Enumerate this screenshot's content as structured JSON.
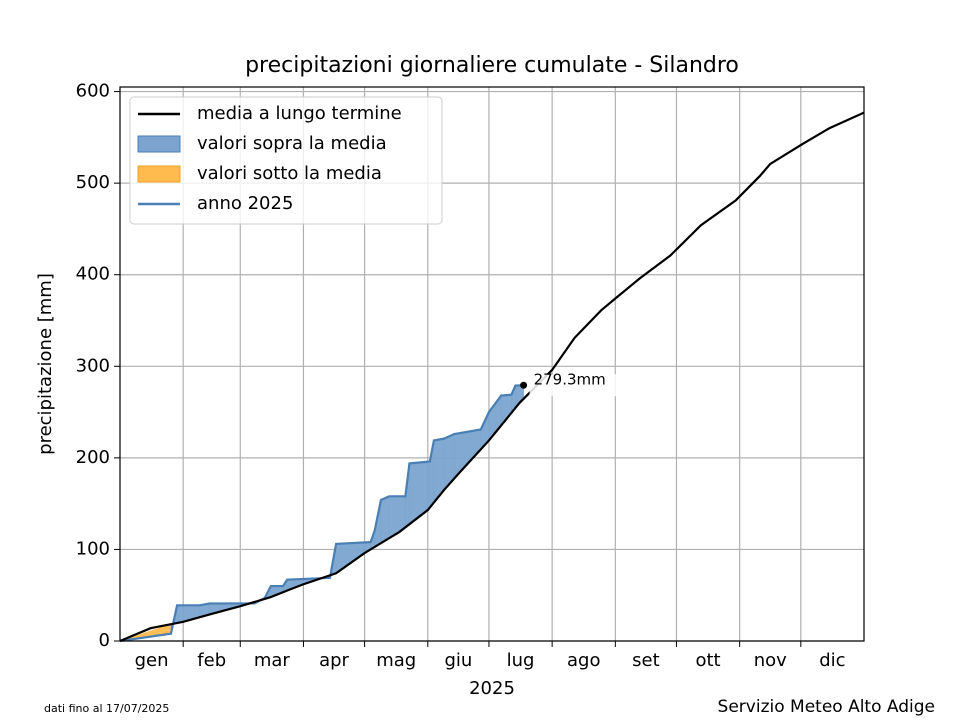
{
  "chart_data": {
    "type": "line",
    "title": "precipitazioni giornaliere cumulate - Silandro",
    "ylabel": "precipitazione [mm]",
    "xlabel": "2025",
    "footer_left": "dati fino al 17/07/2025",
    "footer_right": "Servizio Meteo Alto Adige",
    "xlim": [
      0,
      365
    ],
    "xticks": [
      31,
      59,
      90,
      120,
      151,
      181,
      212,
      243,
      273,
      304,
      334
    ],
    "month_labels": [
      "gen",
      "feb",
      "mar",
      "apr",
      "mag",
      "giu",
      "lug",
      "ago",
      "set",
      "ott",
      "nov",
      "dic"
    ],
    "ylim": [
      0,
      605
    ],
    "yticks": [
      0,
      100,
      200,
      300,
      400,
      500,
      600
    ],
    "grid": true,
    "legend": "upper left",
    "series": [
      {
        "name": "media a lungo termine",
        "color": "#000000",
        "x": [
          0,
          15,
          31,
          44,
          59,
          74,
          83,
          90,
          106,
          120,
          137,
          151,
          159,
          167,
          181,
          196,
          212,
          223,
          236,
          243,
          255,
          270,
          285,
          302,
          314,
          319,
          335,
          348,
          365
        ],
        "values": [
          0,
          14,
          21,
          29,
          38,
          48,
          56,
          62,
          74,
          96,
          119,
          143,
          165,
          185,
          219,
          260,
          296,
          331,
          361,
          374,
          396,
          421,
          454,
          481,
          508,
          521,
          543,
          560,
          577
        ]
      },
      {
        "name": "anno 2025",
        "color": "#4a7fb5",
        "x": [
          0,
          25,
          28,
          39,
          44,
          66,
          71,
          74,
          80,
          82,
          103,
          106,
          123,
          125,
          128,
          132,
          140,
          142,
          152,
          154,
          159,
          164,
          177,
          181,
          187,
          192,
          194,
          198
        ],
        "values": [
          0,
          8,
          39,
          39,
          41,
          41,
          47,
          60,
          60,
          67,
          69,
          106,
          108,
          121,
          154,
          158,
          158,
          194,
          196,
          219,
          221,
          226,
          231,
          250,
          268,
          269,
          279,
          279.3
        ]
      }
    ],
    "fills": [
      {
        "name": "valori sopra la media",
        "color": "#7ba5cf"
      },
      {
        "name": "valori sotto la media",
        "color": "#ffbb4d"
      }
    ],
    "annotation": "279.3mm"
  }
}
